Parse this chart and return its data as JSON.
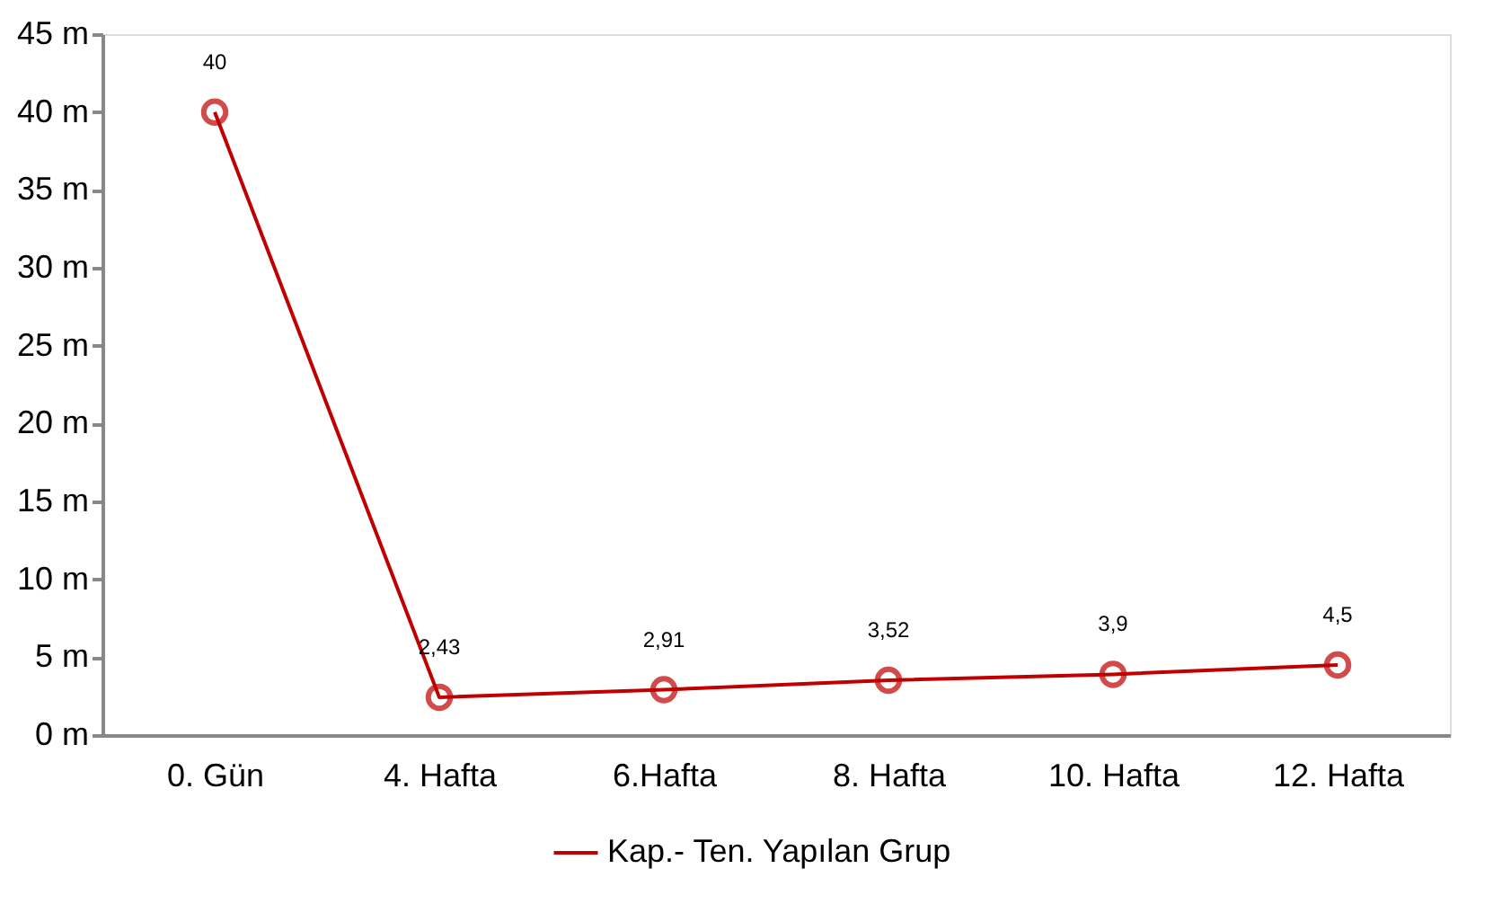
{
  "chart_data": {
    "type": "line",
    "categories": [
      "0. Gün",
      "4. Hafta",
      "6.Hafta",
      "8. Hafta",
      "10. Hafta",
      "12. Hafta"
    ],
    "series": [
      {
        "name": "Kap.- Ten. Yapılan Grup",
        "color": "#c00000",
        "values": [
          40,
          2.43,
          2.91,
          3.52,
          3.9,
          4.5
        ],
        "value_labels": [
          "40",
          "2,43",
          "2,91",
          "3,52",
          "3,9",
          "4,5"
        ]
      }
    ],
    "ylim": [
      0,
      45
    ],
    "yticks": [
      {
        "value": 0,
        "label": "0 m"
      },
      {
        "value": 5,
        "label": "5 m"
      },
      {
        "value": 10,
        "label": "10 m"
      },
      {
        "value": 15,
        "label": "15 m"
      },
      {
        "value": 20,
        "label": "20 m"
      },
      {
        "value": 25,
        "label": "25 m"
      },
      {
        "value": 30,
        "label": "30 m"
      },
      {
        "value": 35,
        "label": "35 m"
      },
      {
        "value": 40,
        "label": "40 m"
      },
      {
        "value": 45,
        "label": "45 m"
      }
    ],
    "grid": false,
    "legend": "bottom",
    "marker": "circle",
    "line_style": "solid"
  }
}
